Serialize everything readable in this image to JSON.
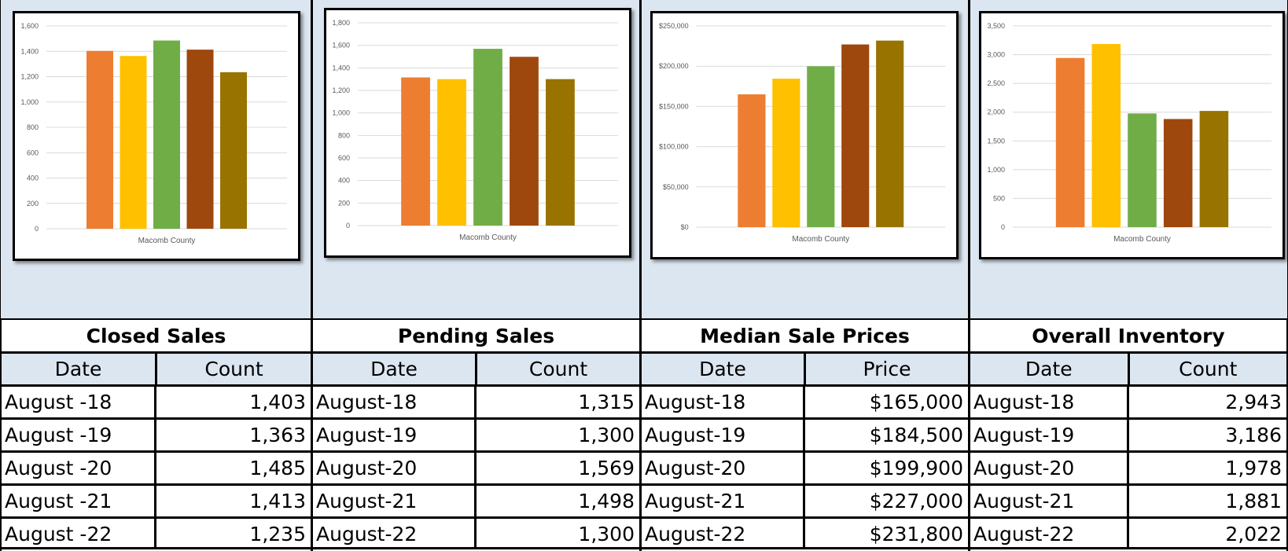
{
  "colors": [
    "#ed7d31",
    "#ffc000",
    "#70ad47",
    "#9e480e",
    "#997300"
  ],
  "chart_data": [
    {
      "type": "bar",
      "xlabel": "Macomb County",
      "ylim": [
        0,
        1600
      ],
      "yticks": [
        "0",
        "200",
        "400",
        "600",
        "800",
        "1,000",
        "1,200",
        "1,400",
        "1,600"
      ],
      "series": [
        {
          "values": [
            1403
          ]
        },
        {
          "values": [
            1363
          ]
        },
        {
          "values": [
            1485
          ]
        },
        {
          "values": [
            1413
          ]
        },
        {
          "values": [
            1235
          ]
        }
      ],
      "grid": true
    },
    {
      "type": "bar",
      "xlabel": "Macomb County",
      "ylim": [
        0,
        1800
      ],
      "yticks": [
        "0",
        "200",
        "400",
        "600",
        "800",
        "1,000",
        "1,200",
        "1,400",
        "1,600",
        "1,800"
      ],
      "series": [
        {
          "values": [
            1315
          ]
        },
        {
          "values": [
            1300
          ]
        },
        {
          "values": [
            1569
          ]
        },
        {
          "values": [
            1498
          ]
        },
        {
          "values": [
            1300
          ]
        }
      ],
      "grid": true
    },
    {
      "type": "bar",
      "xlabel": "Macomb County",
      "ylim": [
        0,
        250000
      ],
      "yticks": [
        "$0",
        "$50,000",
        "$100,000",
        "$150,000",
        "$200,000",
        "$250,000"
      ],
      "series": [
        {
          "values": [
            165000
          ]
        },
        {
          "values": [
            184500
          ]
        },
        {
          "values": [
            199900
          ]
        },
        {
          "values": [
            227000
          ]
        },
        {
          "values": [
            231800
          ]
        }
      ],
      "grid": true
    },
    {
      "type": "bar",
      "xlabel": "Macomb County",
      "ylim": [
        0,
        3500
      ],
      "yticks": [
        "0",
        "500",
        "1,000",
        "1,500",
        "2,000",
        "2,500",
        "3,000",
        "3,500"
      ],
      "series": [
        {
          "values": [
            2943
          ]
        },
        {
          "values": [
            3186
          ]
        },
        {
          "values": [
            1978
          ]
        },
        {
          "values": [
            1881
          ]
        },
        {
          "values": [
            2022
          ]
        }
      ],
      "grid": true
    }
  ],
  "tables": [
    {
      "title": "Closed Sales",
      "col1": "Date",
      "col2": "Count",
      "rows": [
        {
          "date": "August -18",
          "value": "1,403"
        },
        {
          "date": "August -19",
          "value": "1,363"
        },
        {
          "date": "August -20",
          "value": "1,485"
        },
        {
          "date": "August -21",
          "value": "1,413"
        },
        {
          "date": "August -22",
          "value": "1,235"
        }
      ]
    },
    {
      "title": "Pending Sales",
      "col1": "Date",
      "col2": "Count",
      "rows": [
        {
          "date": "August-18",
          "value": "1,315"
        },
        {
          "date": "August-19",
          "value": "1,300"
        },
        {
          "date": "August-20",
          "value": "1,569"
        },
        {
          "date": "August-21",
          "value": "1,498"
        },
        {
          "date": "August-22",
          "value": "1,300"
        }
      ]
    },
    {
      "title": "Median Sale Prices",
      "col1": "Date",
      "col2": "Price",
      "rows": [
        {
          "date": "August-18",
          "value": "$165,000"
        },
        {
          "date": "August-19",
          "value": "$184,500"
        },
        {
          "date": "August-20",
          "value": "$199,900"
        },
        {
          "date": "August-21",
          "value": "$227,000"
        },
        {
          "date": "August-22",
          "value": "$231,800"
        }
      ]
    },
    {
      "title": "Overall Inventory",
      "col1": "Date",
      "col2": "Count",
      "rows": [
        {
          "date": "August-18",
          "value": "2,943"
        },
        {
          "date": "August-19",
          "value": "3,186"
        },
        {
          "date": "August-20",
          "value": "1,978"
        },
        {
          "date": "August-21",
          "value": "1,881"
        },
        {
          "date": "August-22",
          "value": "2,022"
        }
      ]
    }
  ]
}
